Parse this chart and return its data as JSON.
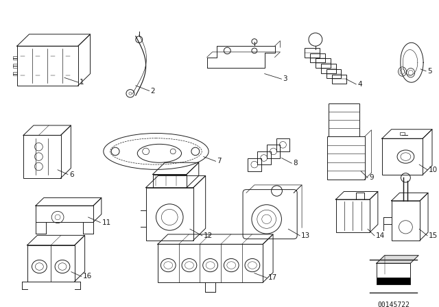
{
  "background_color": "#ffffff",
  "line_color": "#1a1a1a",
  "label_color": "#1a1a1a",
  "part_number": "00145722",
  "fig_width": 6.4,
  "fig_height": 4.48,
  "dpi": 100
}
